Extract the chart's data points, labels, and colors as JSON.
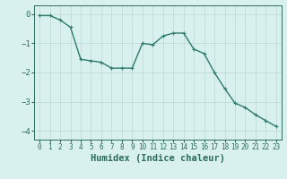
{
  "x": [
    0,
    1,
    2,
    3,
    4,
    5,
    6,
    7,
    8,
    9,
    10,
    11,
    12,
    13,
    14,
    15,
    16,
    17,
    18,
    19,
    20,
    21,
    22,
    23
  ],
  "y": [
    -0.05,
    -0.05,
    -0.2,
    -0.45,
    -1.55,
    -1.6,
    -1.65,
    -1.85,
    -1.85,
    -1.85,
    -1.0,
    -1.05,
    -0.75,
    -0.65,
    -0.65,
    -1.2,
    -1.35,
    -2.0,
    -2.55,
    -3.05,
    -3.2,
    -3.45,
    -3.65,
    -3.85
  ],
  "line_color": "#2d7a6e",
  "marker": "+",
  "bg_color": "#d8f0ee",
  "grid_color": "#c0d8d5",
  "axis_color": "#2d6b5e",
  "xlabel": "Humidex (Indice chaleur)",
  "xlim": [
    -0.5,
    23.5
  ],
  "ylim": [
    -4.3,
    0.3
  ],
  "yticks": [
    0,
    -1,
    -2,
    -3,
    -4
  ],
  "xtick_labels": [
    "0",
    "1",
    "2",
    "3",
    "4",
    "5",
    "6",
    "7",
    "8",
    "9",
    "10",
    "11",
    "12",
    "13",
    "14",
    "15",
    "16",
    "17",
    "18",
    "19",
    "20",
    "21",
    "22",
    "23"
  ],
  "linewidth": 1.0,
  "markersize": 3.5,
  "xtick_fontsize": 5.5,
  "ytick_fontsize": 6.5,
  "xlabel_fontsize": 7.5
}
